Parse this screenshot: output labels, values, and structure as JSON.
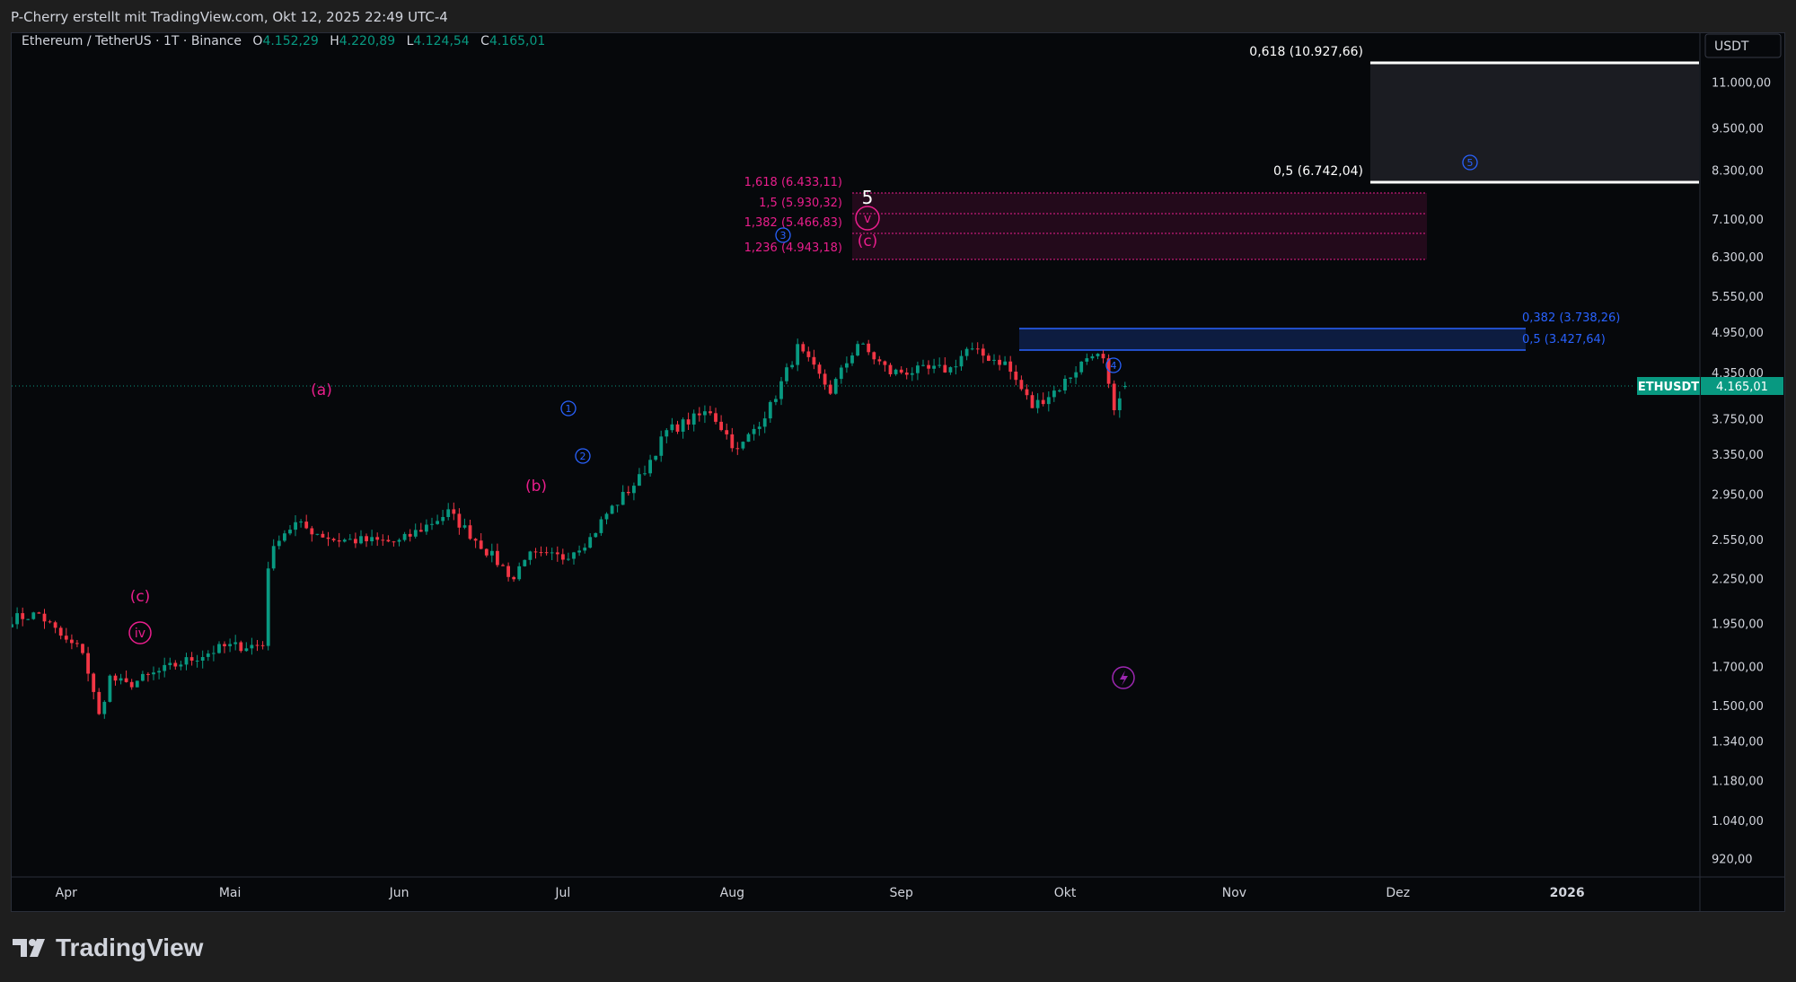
{
  "header": {
    "attribution": "P-Cherry erstellt mit TradingView.com, Okt 12, 2025 22:49 UTC-4"
  },
  "legend": {
    "symbol": "Ethereum / TetherUS · 1T · Binance",
    "o_label": "O",
    "o_value": "4.152,29",
    "h_label": "H",
    "h_value": "4.220,89",
    "l_label": "L",
    "l_value": "4.124,54",
    "c_label": "C",
    "c_value": "4.165,01"
  },
  "price_scale": {
    "currency": "USDT",
    "ticks": [
      "11.000,00",
      "9.500,00",
      "8.300,00",
      "7.100,00",
      "6.300,00",
      "5.550,00",
      "4.950,00",
      "4.350,00",
      "3.750,00",
      "3.350,00",
      "2.950,00",
      "2.550,00",
      "2.250,00",
      "1.950,00",
      "1.700,00",
      "1.500,00",
      "1.340,00",
      "1.180,00",
      "1.040,00",
      "920,00"
    ]
  },
  "time_scale": {
    "labels": [
      "Apr",
      "Mai",
      "Jun",
      "Jul",
      "Aug",
      "Sep",
      "Okt",
      "Nov",
      "Dez",
      "2026"
    ]
  },
  "last_price": {
    "symbol": "ETHUSDT",
    "value": "4.165,01"
  },
  "colors": {
    "up": "#089981",
    "down": "#f23645",
    "wave_pink": "#e91e8c",
    "wave_blue": "#2962ff",
    "fib_white": "#ffffff",
    "background": "#06080b"
  },
  "annotations": {
    "wave_iv": "iv",
    "wave_c_low": "(c)",
    "wave_a": "(a)",
    "wave_b": "(b)",
    "wave_1": "1",
    "wave_2": "2",
    "wave_3": "3",
    "wave_4": "4",
    "wave_5_circle": "5",
    "wave_5_top": "5",
    "wave_v": "v",
    "wave_c_top": "(c)"
  },
  "fib_levels": {
    "white_618": "0,618 (10.927,66)",
    "white_5": "0,5 (6.742,04)",
    "pink_1618": "1,618 (6.433,11)",
    "pink_15": "1,5 (5.930,32)",
    "pink_1382": "1,382 (5.466,83)",
    "pink_1236": "1,236 (4.943,18)",
    "blue_0382": "0,382 (3.738,26)",
    "blue_05": "0,5 (3.427,64)"
  },
  "footer": {
    "brand": "TradingView"
  },
  "chart_data": {
    "type": "candlestick",
    "symbol": "Ethereum / TetherUS",
    "interval": "1T",
    "exchange": "Binance",
    "y_scale": "log",
    "ylim": [
      880,
      11800
    ],
    "x_range": [
      "2025-03-22",
      "2026-01-25"
    ],
    "ohlc_anchors": [
      {
        "date": "2025-03-22",
        "close": 1980
      },
      {
        "date": "2025-03-27",
        "close": 2010
      },
      {
        "date": "2025-04-01",
        "close": 1840
      },
      {
        "date": "2025-04-04",
        "close": 1790
      },
      {
        "date": "2025-04-07",
        "close": 1450
      },
      {
        "date": "2025-04-09",
        "close": 1640
      },
      {
        "date": "2025-04-12",
        "close": 1600
      },
      {
        "date": "2025-04-22",
        "close": 1720
      },
      {
        "date": "2025-04-30",
        "close": 1810
      },
      {
        "date": "2025-05-07",
        "close": 1820
      },
      {
        "date": "2025-05-08",
        "close": 2350
      },
      {
        "date": "2025-05-10",
        "close": 2580
      },
      {
        "date": "2025-05-13",
        "close": 2680
      },
      {
        "date": "2025-05-20",
        "close": 2550
      },
      {
        "date": "2025-06-01",
        "close": 2530
      },
      {
        "date": "2025-06-10",
        "close": 2780
      },
      {
        "date": "2025-06-15",
        "close": 2550
      },
      {
        "date": "2025-06-22",
        "close": 2250
      },
      {
        "date": "2025-06-24",
        "close": 2420
      },
      {
        "date": "2025-07-01",
        "close": 2410
      },
      {
        "date": "2025-07-06",
        "close": 2560
      },
      {
        "date": "2025-07-09",
        "close": 2770
      },
      {
        "date": "2025-07-15",
        "close": 3100
      },
      {
        "date": "2025-07-20",
        "close": 3600
      },
      {
        "date": "2025-07-28",
        "close": 3850
      },
      {
        "date": "2025-08-02",
        "close": 3380
      },
      {
        "date": "2025-08-08",
        "close": 3900
      },
      {
        "date": "2025-08-13",
        "close": 4700
      },
      {
        "date": "2025-08-19",
        "close": 4100
      },
      {
        "date": "2025-08-24",
        "close": 4780
      },
      {
        "date": "2025-08-30",
        "close": 4350
      },
      {
        "date": "2025-09-10",
        "close": 4400
      },
      {
        "date": "2025-09-13",
        "close": 4680
      },
      {
        "date": "2025-09-20",
        "close": 4480
      },
      {
        "date": "2025-09-25",
        "close": 3900
      },
      {
        "date": "2025-09-30",
        "close": 4150
      },
      {
        "date": "2025-10-06",
        "close": 4650
      },
      {
        "date": "2025-10-08",
        "close": 4500
      },
      {
        "date": "2025-10-10",
        "close": 3800
      },
      {
        "date": "2025-10-12",
        "close": 4165
      }
    ],
    "last": {
      "open": 4152.29,
      "high": 4220.89,
      "low": 4124.54,
      "close": 4165.01
    }
  }
}
